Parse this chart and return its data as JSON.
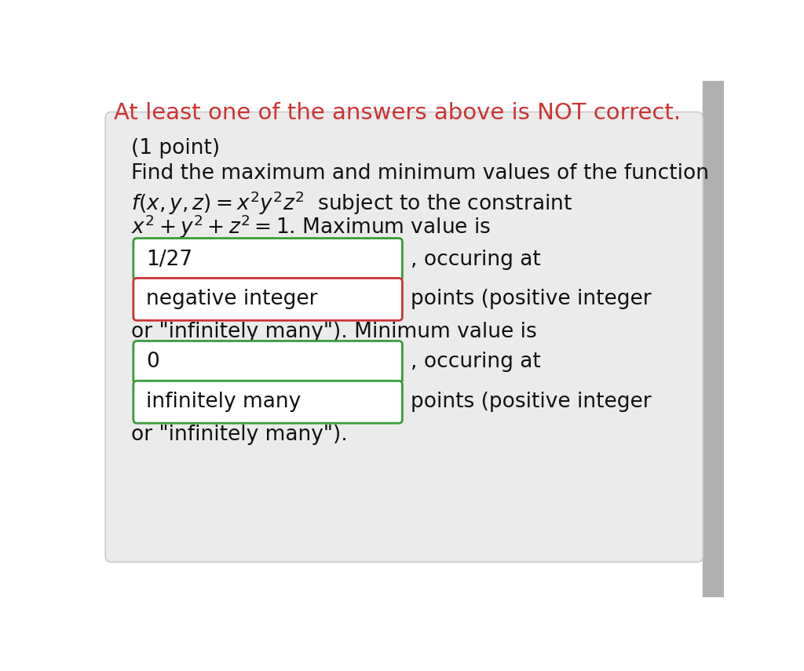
{
  "background_color": "#ffffff",
  "panel_bg": "#ebebeb",
  "panel_border": "#cccccc",
  "header_text": "At least one of the answers above is NOT correct.",
  "header_color": "#cc3333",
  "header_fontsize": 21,
  "body_fontsize": 19,
  "box1_text": "1/27",
  "box1_border": "#3a9c3a",
  "box1_bg": "#ffffff",
  "box2_text": "negative integer",
  "box2_border": "#cc3333",
  "box2_bg": "#ffffff",
  "box3_text": "0",
  "box3_border": "#3a9c3a",
  "box3_bg": "#ffffff",
  "box4_text": "infinitely many",
  "box4_border": "#3a9c3a",
  "box4_bg": "#ffffff",
  "line1": "(1 point)",
  "line2": "Find the maximum and minimum values of the function",
  "line_mid": "or \"infinitely many\"). Minimum value is",
  "line_end": "or \"infinitely many\").",
  "label_occuring1": ", occuring at",
  "label_points1": "points (positive integer",
  "label_occuring2": ", occuring at",
  "label_points2": "points (positive integer"
}
